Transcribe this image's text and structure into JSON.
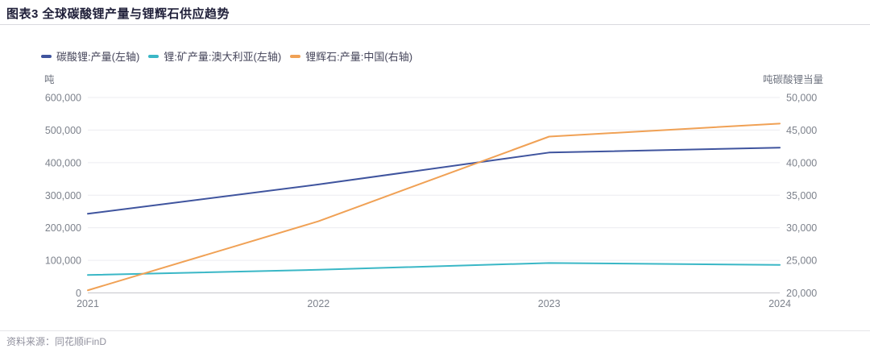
{
  "header": {
    "title": "图表3  全球碳酸锂产量与锂辉石供应趋势"
  },
  "chart_data": {
    "type": "line",
    "title": "图表3 全球碳酸锂产量与锂辉石供应趋势",
    "categories": [
      "2021",
      "2022",
      "2023",
      "2024"
    ],
    "series": [
      {
        "name": "碳酸锂:产量(左轴)",
        "axis": "left",
        "color": "#3f549e",
        "values": [
          243000,
          333000,
          431000,
          446000
        ]
      },
      {
        "name": "锂:矿产量:澳大利亚(左轴)",
        "axis": "left",
        "color": "#3ab7c6",
        "values": [
          55000,
          71000,
          92000,
          86000
        ]
      },
      {
        "name": "锂辉石:产量:中国(右轴)",
        "axis": "right",
        "color": "#f0a155",
        "values": [
          20400,
          31000,
          44000,
          46000
        ]
      }
    ],
    "left_axis": {
      "unit": "吨",
      "min": 0,
      "max": 600000,
      "step": 100000,
      "ticks_top_to_bottom": [
        "600,000",
        "500,000",
        "400,000",
        "300,000",
        "200,000",
        "100,000",
        "0"
      ]
    },
    "right_axis": {
      "unit": "吨碳酸锂当量",
      "min": 20000,
      "max": 50000,
      "step": 5000,
      "ticks_top_to_bottom": [
        "50,000",
        "45,000",
        "40,000",
        "35,000",
        "30,000",
        "25,000",
        "20,000"
      ]
    },
    "legend_position": "top-left",
    "grid": true,
    "colors": {
      "gridline": "#ececf0",
      "axis_line": "#c6c6cc",
      "tick_text": "#7d828c"
    }
  },
  "footer": {
    "source": "资料来源：同花顺iFinD"
  }
}
